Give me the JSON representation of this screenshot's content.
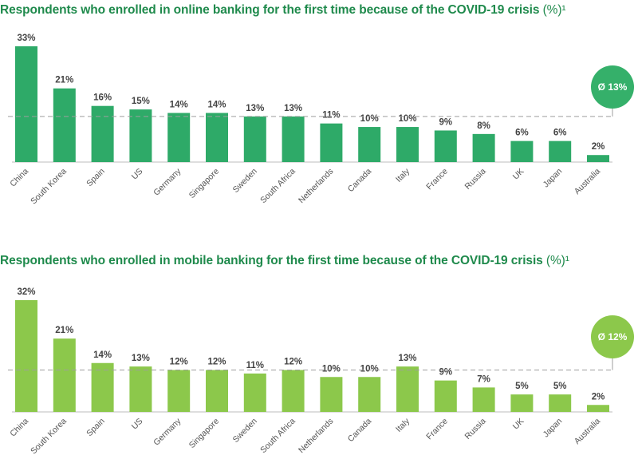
{
  "chart_data": [
    {
      "type": "bar",
      "title": "Respondents who enrolled in online banking for the first time because of the COVID-19 crisis",
      "title_unit": "(%)¹",
      "categories": [
        "China",
        "South Korea",
        "Spain",
        "US",
        "Germany",
        "Singapore",
        "Sweden",
        "South Africa",
        "Netherlands",
        "Canada",
        "Italy",
        "France",
        "Russia",
        "UK",
        "Japan",
        "Australia"
      ],
      "values": [
        33,
        21,
        16,
        15,
        14,
        14,
        13,
        13,
        11,
        10,
        10,
        9,
        8,
        6,
        6,
        2
      ],
      "value_labels": [
        "33%",
        "21%",
        "16%",
        "15%",
        "14%",
        "14%",
        "13%",
        "13%",
        "11%",
        "10%",
        "10%",
        "9%",
        "8%",
        "6%",
        "6%",
        "2%"
      ],
      "average": 13,
      "average_label": "Ø 13%",
      "bar_color": "#2eaa68",
      "badge_color": "#35b06a",
      "ylim": [
        0,
        33
      ]
    },
    {
      "type": "bar",
      "title": "Respondents who enrolled in mobile banking for the first time because of the COVID-19 crisis",
      "title_unit": "(%)¹",
      "categories": [
        "China",
        "South Korea",
        "Spain",
        "US",
        "Germany",
        "Singapore",
        "Sweden",
        "South Africa",
        "Netherlands",
        "Canada",
        "Italy",
        "France",
        "Russia",
        "UK",
        "Japan",
        "Australia"
      ],
      "values": [
        32,
        21,
        14,
        13,
        12,
        12,
        11,
        12,
        10,
        10,
        13,
        9,
        7,
        5,
        5,
        2
      ],
      "value_labels": [
        "32%",
        "21%",
        "14%",
        "13%",
        "12%",
        "12%",
        "11%",
        "12%",
        "10%",
        "10%",
        "13%",
        "9%",
        "7%",
        "5%",
        "5%",
        "2%"
      ],
      "average": 12,
      "average_label": "Ø 12%",
      "bar_color": "#8cc84b",
      "badge_color": "#8cc84b",
      "ylim": [
        0,
        32
      ]
    }
  ]
}
